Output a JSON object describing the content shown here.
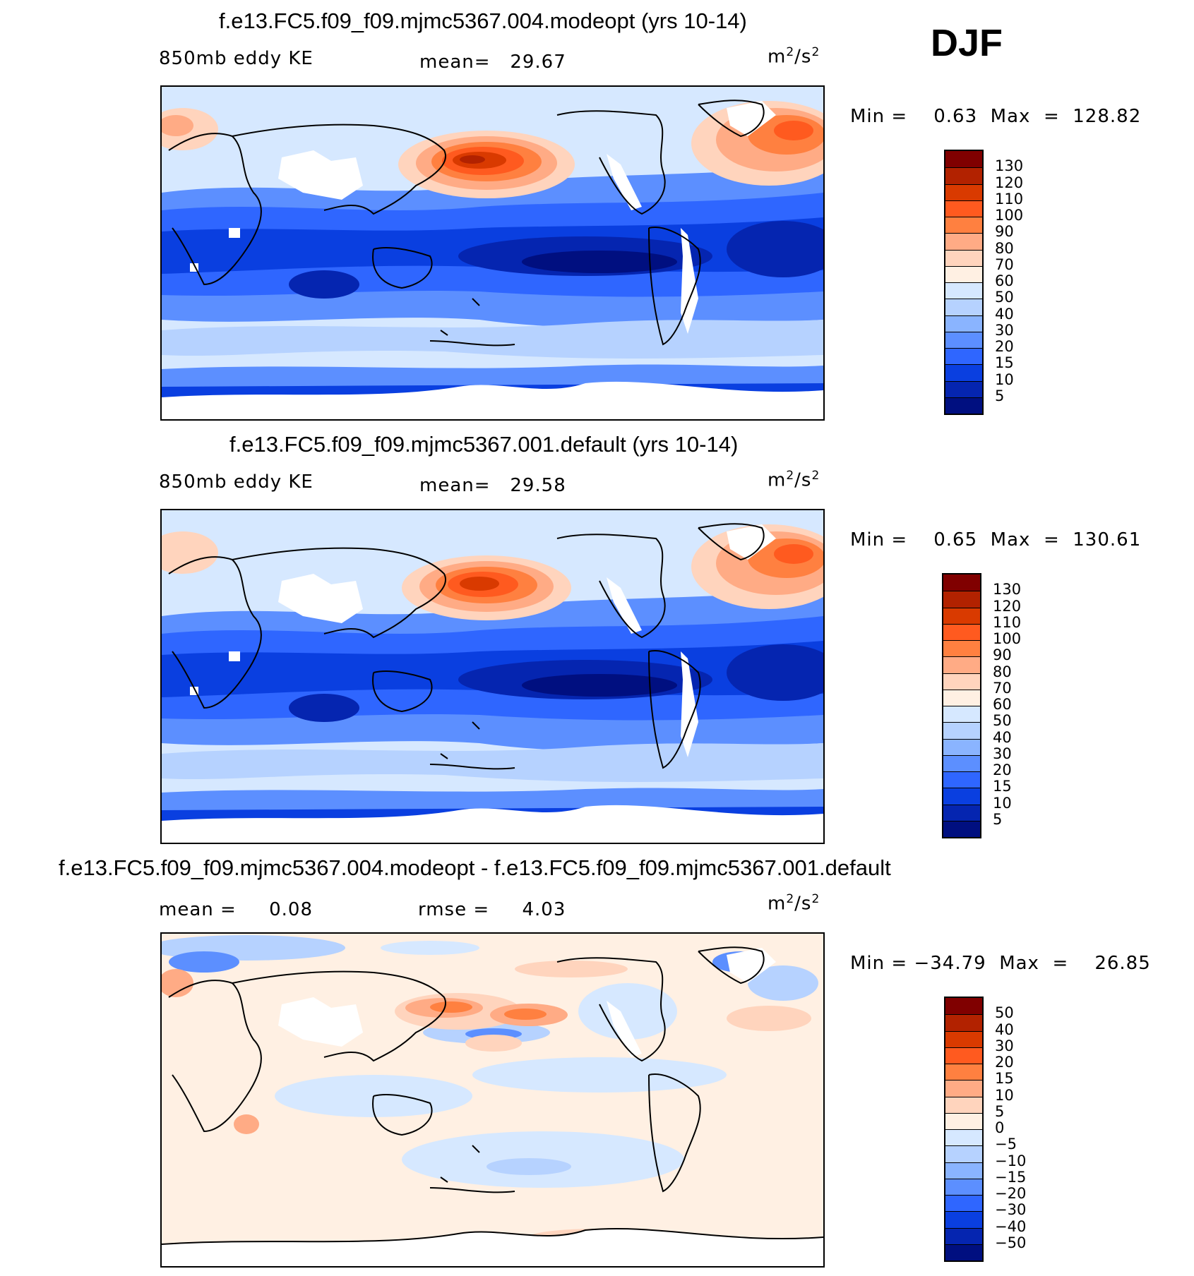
{
  "season": "DJF",
  "panels": [
    {
      "title": "f.e13.FC5.f09_f09.mjmc5367.004.modeopt (yrs 10-14)",
      "variable": "850mb eddy KE",
      "mean_text": "mean=   29.67",
      "units_base": "m",
      "units_sup1": "2",
      "units_mid": "/s",
      "units_sup2": "2",
      "minmax": "Min =    0.63  Max  =  128.82",
      "colorbar": {
        "labels": [
          "130",
          "120",
          "110",
          "100",
          "90",
          "80",
          "70",
          "60",
          "50",
          "40",
          "30",
          "20",
          "15",
          "10",
          "5"
        ],
        "colors": [
          "#800000",
          "#b22200",
          "#d93a00",
          "#ff5a1f",
          "#ff8040",
          "#ffab85",
          "#ffd4bd",
          "#fff0e3",
          "#d6e8ff",
          "#b6d2ff",
          "#8ab4ff",
          "#5c8fff",
          "#2f66ff",
          "#0a3fe0",
          "#0525b0",
          "#000f80"
        ]
      }
    },
    {
      "title": "f.e13.FC5.f09_f09.mjmc5367.001.default (yrs 10-14)",
      "variable": "850mb eddy KE",
      "mean_text": "mean=   29.58",
      "units_base": "m",
      "units_sup1": "2",
      "units_mid": "/s",
      "units_sup2": "2",
      "minmax": "Min =    0.65  Max  =  130.61",
      "colorbar": {
        "labels": [
          "130",
          "120",
          "110",
          "100",
          "90",
          "80",
          "70",
          "60",
          "50",
          "40",
          "30",
          "20",
          "15",
          "10",
          "5"
        ],
        "colors": [
          "#800000",
          "#b22200",
          "#d93a00",
          "#ff5a1f",
          "#ff8040",
          "#ffab85",
          "#ffd4bd",
          "#fff0e3",
          "#d6e8ff",
          "#b6d2ff",
          "#8ab4ff",
          "#5c8fff",
          "#2f66ff",
          "#0a3fe0",
          "#0525b0",
          "#000f80"
        ]
      }
    },
    {
      "title": "f.e13.FC5.f09_f09.mjmc5367.004.modeopt - f.e13.FC5.f09_f09.mjmc5367.001.default",
      "mean_text": "mean =     0.08",
      "rmse_text": "rmse =     4.03",
      "units_base": "m",
      "units_sup1": "2",
      "units_mid": "/s",
      "units_sup2": "2",
      "minmax": "Min = −34.79  Max  =    26.85",
      "colorbar": {
        "labels": [
          "50",
          "40",
          "30",
          "20",
          "15",
          "10",
          "5",
          "0",
          "−5",
          "−10",
          "−15",
          "−20",
          "−30",
          "−40",
          "−50"
        ],
        "colors": [
          "#800000",
          "#b22200",
          "#d93a00",
          "#ff5a1f",
          "#ff8040",
          "#ffab85",
          "#ffd4bd",
          "#fff0e3",
          "#d6e8ff",
          "#b6d2ff",
          "#8ab4ff",
          "#5c8fff",
          "#2f66ff",
          "#0a3fe0",
          "#0525b0",
          "#000f80"
        ]
      }
    }
  ],
  "colors": {
    "land_outline": "#000000",
    "missing": "#ffffff"
  }
}
